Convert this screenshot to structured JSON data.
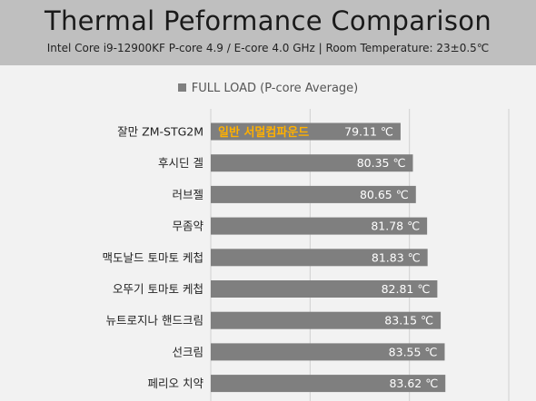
{
  "header": {
    "title": "Thermal Peformance Comparison",
    "subtitle": "Intel Core i9-12900KF P-core 4.9 / E-core 4.0 GHz  |  Room Temperature: 23±0.5℃"
  },
  "colors": {
    "bar": "#7f7f7f",
    "annotation": "#ffb000",
    "header_bg": "#bfbfbf",
    "plot_bg": "#f2f2f2"
  },
  "chart_data": {
    "type": "bar",
    "orientation": "horizontal",
    "title": "Thermal Peformance Comparison",
    "subtitle": "Intel Core i9-12900KF P-core 4.9 / E-core 4.0 GHz  |  Room Temperature: 23±0.5℃",
    "legend": {
      "position": "top",
      "entries": [
        "FULL LOAD (P-core Average)"
      ]
    },
    "categories": [
      "잘만 ZM-STG2M",
      "후시딘 겔",
      "러브젤",
      "무좀약",
      "맥도날드 토마토 케첩",
      "오뚜기 토마토 케첩",
      "뉴트로지나 핸드크림",
      "선크림",
      "페리오 치약"
    ],
    "series": [
      {
        "name": "FULL LOAD (P-core Average)",
        "values": [
          79.11,
          80.35,
          80.65,
          81.78,
          81.83,
          82.81,
          83.15,
          83.55,
          83.62
        ],
        "value_labels": [
          "79.11 ℃",
          "80.35 ℃",
          "80.65 ℃",
          "81.78 ℃",
          "81.83 ℃",
          "82.81 ℃",
          "83.15 ℃",
          "83.55 ℃",
          "83.62 ℃"
        ]
      }
    ],
    "annotations": [
      {
        "category_index": 0,
        "text": "일반 서멀컴파운드"
      }
    ],
    "xlim": [
      60,
      90
    ],
    "grid": true
  }
}
